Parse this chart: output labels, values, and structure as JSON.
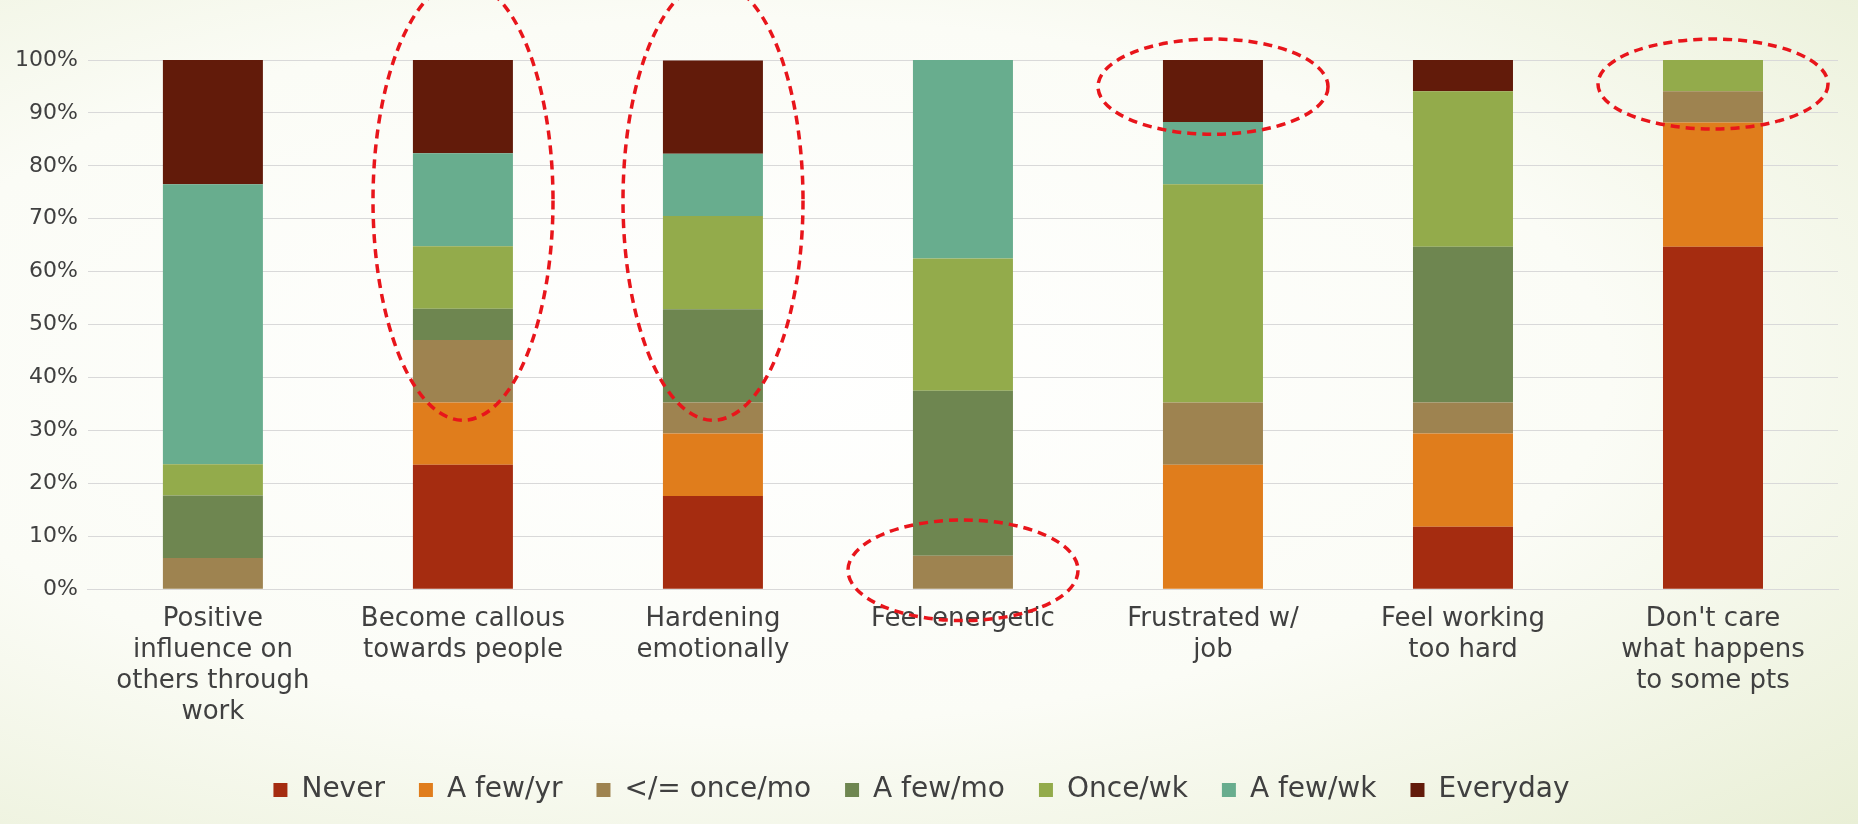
{
  "chart_data": {
    "type": "bar",
    "stacked": true,
    "categories": [
      "Positive influence on others through work",
      "Become callous towards people",
      "Hardening emotionally",
      "Feel energetic",
      "Frustrated w/ job",
      "Feel working too hard",
      "Don't care what happens to some pts"
    ],
    "series": [
      {
        "name": "Never",
        "color": "#a52c10",
        "values": [
          0,
          23.5,
          17.6,
          0,
          0,
          11.8,
          64.7
        ]
      },
      {
        "name": "A few/yr",
        "color": "#e07d1c",
        "values": [
          0,
          11.8,
          11.8,
          0,
          23.5,
          17.6,
          23.5
        ]
      },
      {
        "name": "</= once/mo",
        "color": "#9e8350",
        "values": [
          5.9,
          11.8,
          5.9,
          6.3,
          11.8,
          5.9,
          5.9
        ]
      },
      {
        "name": "A few/mo",
        "color": "#6e8650",
        "values": [
          11.8,
          5.9,
          17.6,
          31.2,
          0,
          29.4,
          0
        ]
      },
      {
        "name": "Once/wk",
        "color": "#93ab4b",
        "values": [
          5.9,
          11.8,
          17.6,
          25,
          41.2,
          29.4,
          5.9
        ]
      },
      {
        "name": "A few/wk",
        "color": "#68ad8e",
        "values": [
          52.9,
          17.6,
          11.8,
          37.5,
          11.8,
          0,
          0
        ]
      },
      {
        "name": "Everyday",
        "color": "#621b0a",
        "values": [
          23.5,
          17.6,
          17.6,
          0,
          11.8,
          5.9,
          0
        ]
      }
    ],
    "ylim": [
      0,
      100
    ],
    "yticks": [
      {
        "value": 0,
        "label": "0%"
      },
      {
        "value": 10,
        "label": "10%"
      },
      {
        "value": 20,
        "label": "20%"
      },
      {
        "value": 30,
        "label": "30%"
      },
      {
        "value": 40,
        "label": "40%"
      },
      {
        "value": 50,
        "label": "50%"
      },
      {
        "value": 60,
        "label": "60%"
      },
      {
        "value": 70,
        "label": "70%"
      },
      {
        "value": 80,
        "label": "80%"
      },
      {
        "value": 90,
        "label": "90%"
      },
      {
        "value": 100,
        "label": "100%"
      }
    ],
    "grid": "y",
    "legend": "bottom"
  }
}
